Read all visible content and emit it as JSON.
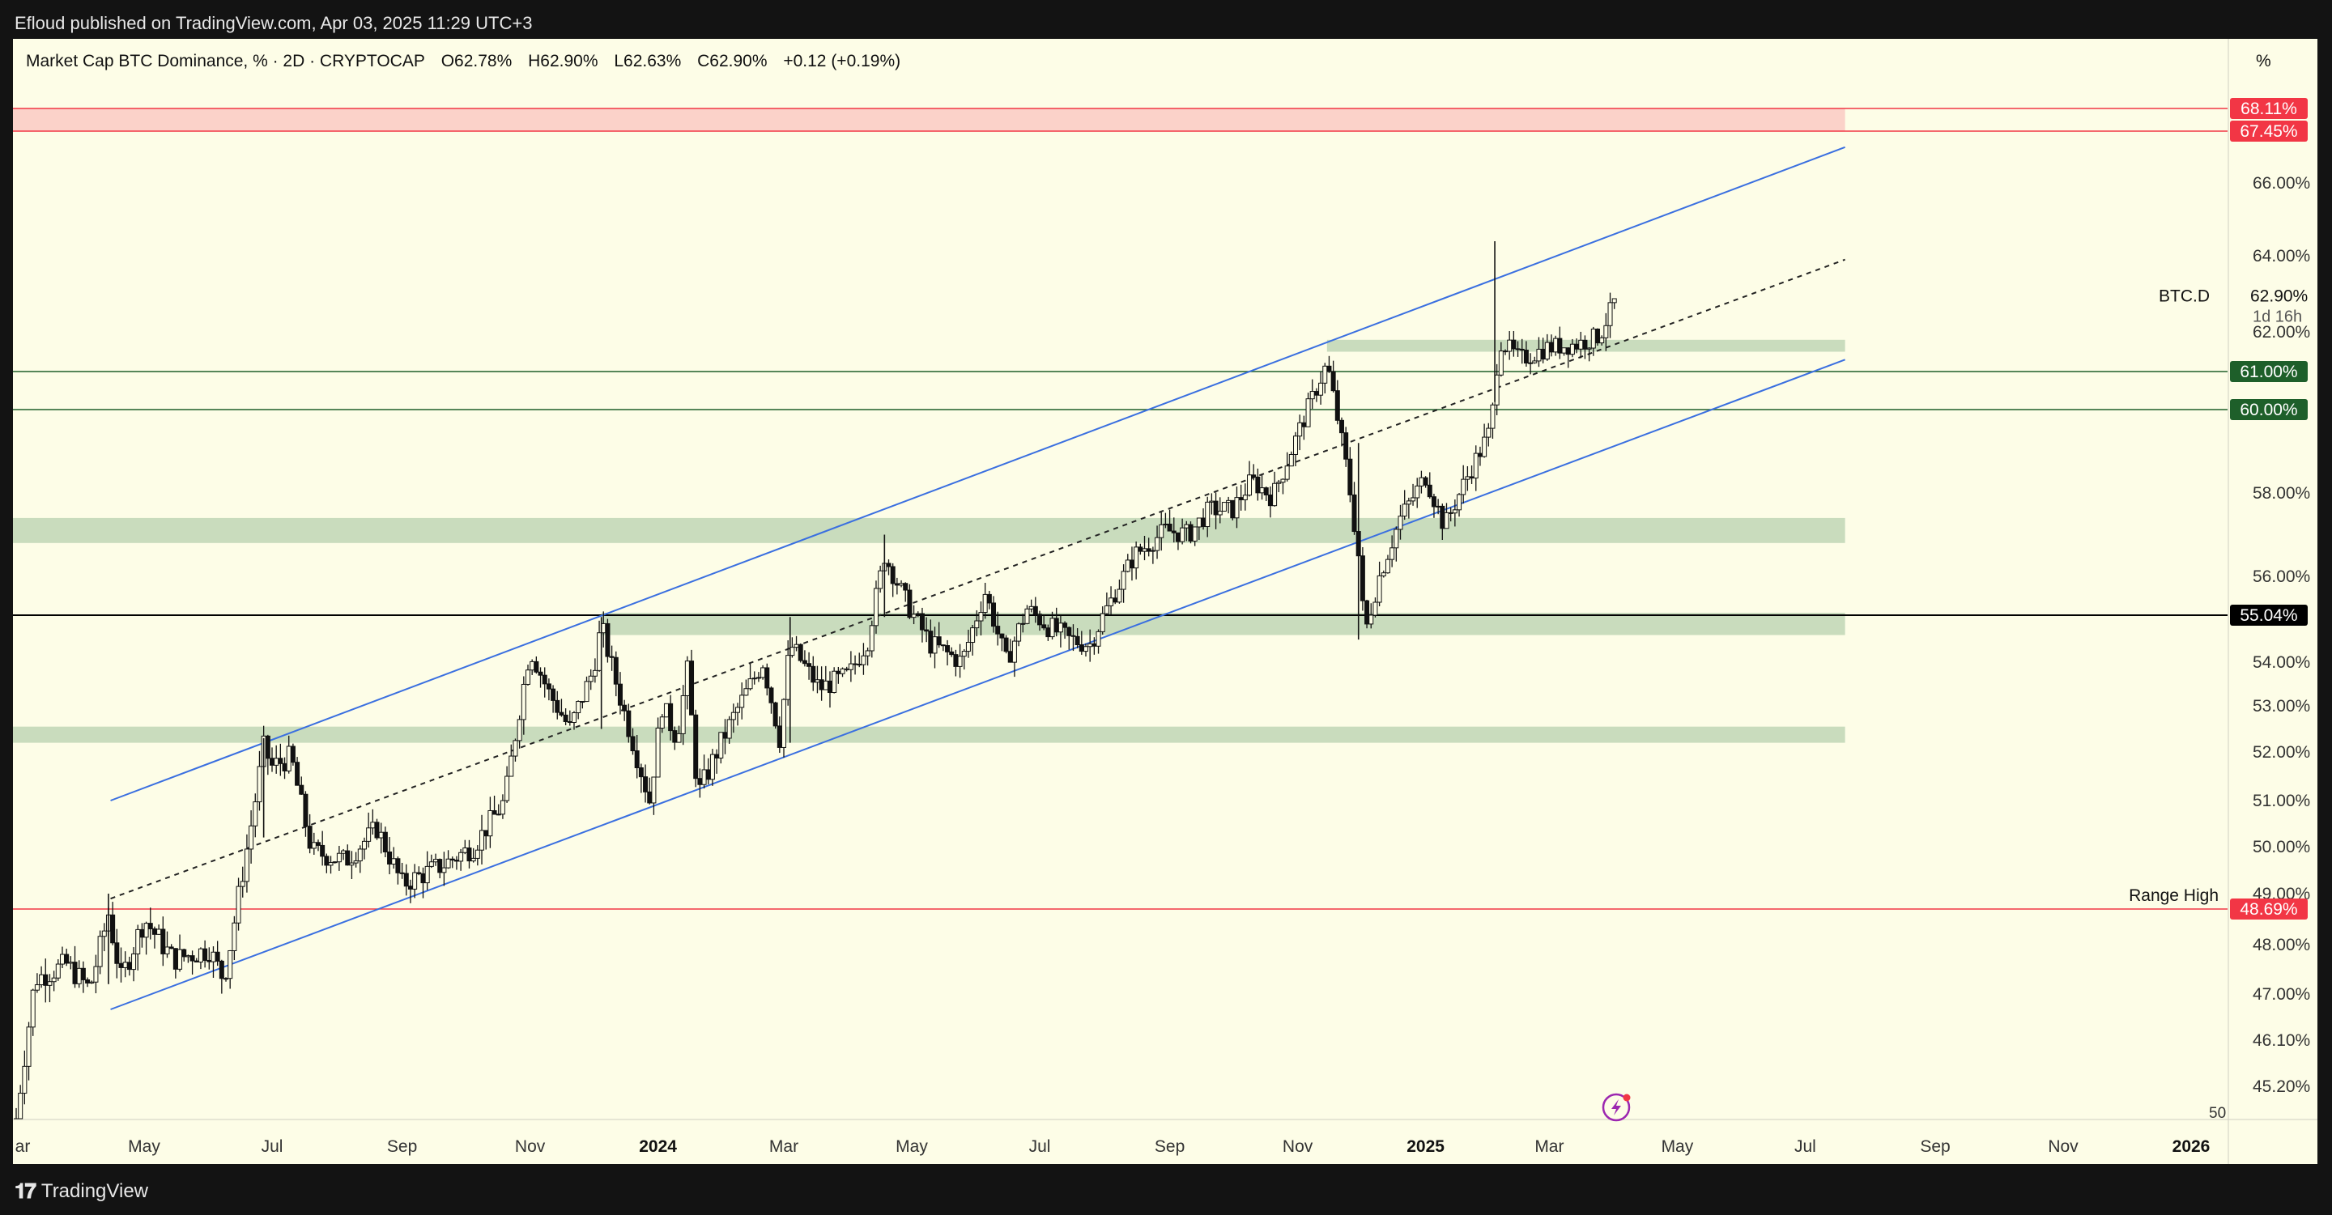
{
  "header": {
    "published": "Efloud published on TradingView.com, Apr 03, 2025 11:29 UTC+3"
  },
  "legend": {
    "title": "Market Cap BTC Dominance, % · 2D · CRYPTOCAP",
    "open": "O62.78%",
    "high": "H62.90%",
    "low": "L62.63%",
    "close": "C62.90%",
    "change": "+0.12 (+0.19%)"
  },
  "scale_unit": "%",
  "footer": {
    "brand": "TradingView"
  },
  "chart_data": {
    "type": "candlestick",
    "symbol": "BTC.D",
    "timer": "1d 16h",
    "y_ticks": [
      "45.20%",
      "46.10%",
      "47.00%",
      "48.00%",
      "49.00%",
      "50.00%",
      "51.00%",
      "52.00%",
      "53.00%",
      "54.00%",
      "56.00%",
      "58.00%",
      "62.00%",
      "64.00%",
      "66.00%"
    ],
    "x_ticks": [
      {
        "label": "ar",
        "date": "2023-03-01",
        "bold": false
      },
      {
        "label": "May",
        "date": "2023-05-01",
        "bold": false
      },
      {
        "label": "Jul",
        "date": "2023-07-01",
        "bold": false
      },
      {
        "label": "Sep",
        "date": "2023-09-01",
        "bold": false
      },
      {
        "label": "Nov",
        "date": "2023-11-01",
        "bold": false
      },
      {
        "label": "2024",
        "date": "2024-01-01",
        "bold": true
      },
      {
        "label": "Mar",
        "date": "2024-03-01",
        "bold": false
      },
      {
        "label": "May",
        "date": "2024-05-01",
        "bold": false
      },
      {
        "label": "Jul",
        "date": "2024-07-01",
        "bold": false
      },
      {
        "label": "Sep",
        "date": "2024-09-01",
        "bold": false
      },
      {
        "label": "Nov",
        "date": "2024-11-01",
        "bold": false
      },
      {
        "label": "2025",
        "date": "2025-01-01",
        "bold": true
      },
      {
        "label": "Mar",
        "date": "2025-03-01",
        "bold": false
      },
      {
        "label": "May",
        "date": "2025-05-01",
        "bold": false
      },
      {
        "label": "Jul",
        "date": "2025-07-01",
        "bold": false
      },
      {
        "label": "Sep",
        "date": "2025-09-01",
        "bold": false
      },
      {
        "label": "Nov",
        "date": "2025-11-01",
        "bold": false
      },
      {
        "label": "2026",
        "date": "2026-01-01",
        "bold": true
      }
    ],
    "price_path": [
      [
        "2023-03-01",
        44.6
      ],
      [
        "2023-03-10",
        47.3
      ],
      [
        "2023-03-25",
        47.6
      ],
      [
        "2023-04-05",
        47.1
      ],
      [
        "2023-04-14",
        48.6
      ],
      [
        "2023-04-20",
        47.3
      ],
      [
        "2023-05-01",
        48.5
      ],
      [
        "2023-05-15",
        47.7
      ],
      [
        "2023-06-01",
        47.9
      ],
      [
        "2023-06-08",
        47.3
      ],
      [
        "2023-06-12",
        48.2
      ],
      [
        "2023-06-20",
        50.2
      ],
      [
        "2023-06-27",
        52.1
      ],
      [
        "2023-07-01",
        51.7
      ],
      [
        "2023-07-10",
        51.9
      ],
      [
        "2023-07-20",
        49.9
      ],
      [
        "2023-08-05",
        49.7
      ],
      [
        "2023-08-20",
        50.4
      ],
      [
        "2023-09-01",
        49.2
      ],
      [
        "2023-09-20",
        49.6
      ],
      [
        "2023-10-05",
        50.0
      ],
      [
        "2023-10-20",
        51.0
      ],
      [
        "2023-11-01",
        54.3
      ],
      [
        "2023-11-10",
        53.3
      ],
      [
        "2023-11-20",
        52.5
      ],
      [
        "2023-12-01",
        53.8
      ],
      [
        "2023-12-05",
        54.8
      ],
      [
        "2023-12-15",
        53.0
      ],
      [
        "2023-12-28",
        51.0
      ],
      [
        "2024-01-03",
        53.0
      ],
      [
        "2024-01-10",
        52.3
      ],
      [
        "2024-01-15",
        53.8
      ],
      [
        "2024-01-20",
        51.1
      ],
      [
        "2024-02-01",
        52.3
      ],
      [
        "2024-02-12",
        53.3
      ],
      [
        "2024-02-20",
        54.0
      ],
      [
        "2024-02-28",
        52.3
      ],
      [
        "2024-03-04",
        54.4
      ],
      [
        "2024-03-18",
        53.4
      ],
      [
        "2024-04-01",
        53.7
      ],
      [
        "2024-04-10",
        54.5
      ],
      [
        "2024-04-18",
        56.5
      ],
      [
        "2024-05-01",
        55.1
      ],
      [
        "2024-05-10",
        54.4
      ],
      [
        "2024-05-25",
        54.0
      ],
      [
        "2024-06-05",
        55.6
      ],
      [
        "2024-06-15",
        54.0
      ],
      [
        "2024-06-25",
        55.2
      ],
      [
        "2024-07-05",
        54.8
      ],
      [
        "2024-07-15",
        54.5
      ],
      [
        "2024-07-25",
        54.4
      ],
      [
        "2024-08-05",
        55.5
      ],
      [
        "2024-08-15",
        56.5
      ],
      [
        "2024-08-30",
        57.1
      ],
      [
        "2024-09-10",
        57.0
      ],
      [
        "2024-09-20",
        57.6
      ],
      [
        "2024-10-01",
        57.6
      ],
      [
        "2024-10-10",
        58.3
      ],
      [
        "2024-10-20",
        57.9
      ],
      [
        "2024-11-01",
        59.4
      ],
      [
        "2024-11-15",
        61.2
      ],
      [
        "2024-11-25",
        58.4
      ],
      [
        "2024-11-30",
        56.5
      ],
      [
        "2024-12-03",
        54.6
      ],
      [
        "2024-12-10",
        56.0
      ],
      [
        "2024-12-20",
        57.4
      ],
      [
        "2025-01-01",
        58.4
      ],
      [
        "2025-01-10",
        57.2
      ],
      [
        "2025-01-20",
        58.3
      ],
      [
        "2025-02-01",
        59.5
      ],
      [
        "2025-02-03",
        60.5
      ],
      [
        "2025-02-05",
        61.8
      ],
      [
        "2025-02-15",
        61.3
      ],
      [
        "2025-02-28",
        61.6
      ],
      [
        "2025-03-15",
        61.7
      ],
      [
        "2025-03-25",
        61.9
      ],
      [
        "2025-04-02",
        62.9
      ]
    ],
    "channel": {
      "upper": [
        [
          "2023-04-15",
          51.0
        ],
        [
          "2025-07-20",
          67.0
        ]
      ],
      "middle": [
        [
          "2023-04-15",
          48.9
        ],
        [
          "2025-07-20",
          63.9
        ]
      ],
      "lower": [
        [
          "2023-04-15",
          46.7
        ],
        [
          "2025-07-20",
          61.3
        ]
      ]
    },
    "supply_zone": [
      67.45,
      68.11
    ],
    "demand_zones": [
      [
        52.2,
        52.55
      ],
      [
        54.6,
        55.1
      ],
      [
        56.8,
        57.4
      ],
      [
        61.5,
        61.8
      ]
    ],
    "levels": [
      {
        "label": "68.11%",
        "value": 68.11,
        "color": "#f23645"
      },
      {
        "label": "67.45%",
        "value": 67.45,
        "color": "#f23645"
      },
      {
        "label": "61.00%",
        "value": 61.0,
        "color": "#1e5f2a"
      },
      {
        "label": "60.00%",
        "value": 60.0,
        "color": "#1e5f2a"
      },
      {
        "label": "55.04%",
        "value": 55.04,
        "color": "#000000"
      },
      {
        "label": "48.69%",
        "value": 48.69,
        "color": "#f23645",
        "annotation": "Range High"
      }
    ],
    "last_price": "62.90%",
    "bottom_partial_label": "50"
  }
}
